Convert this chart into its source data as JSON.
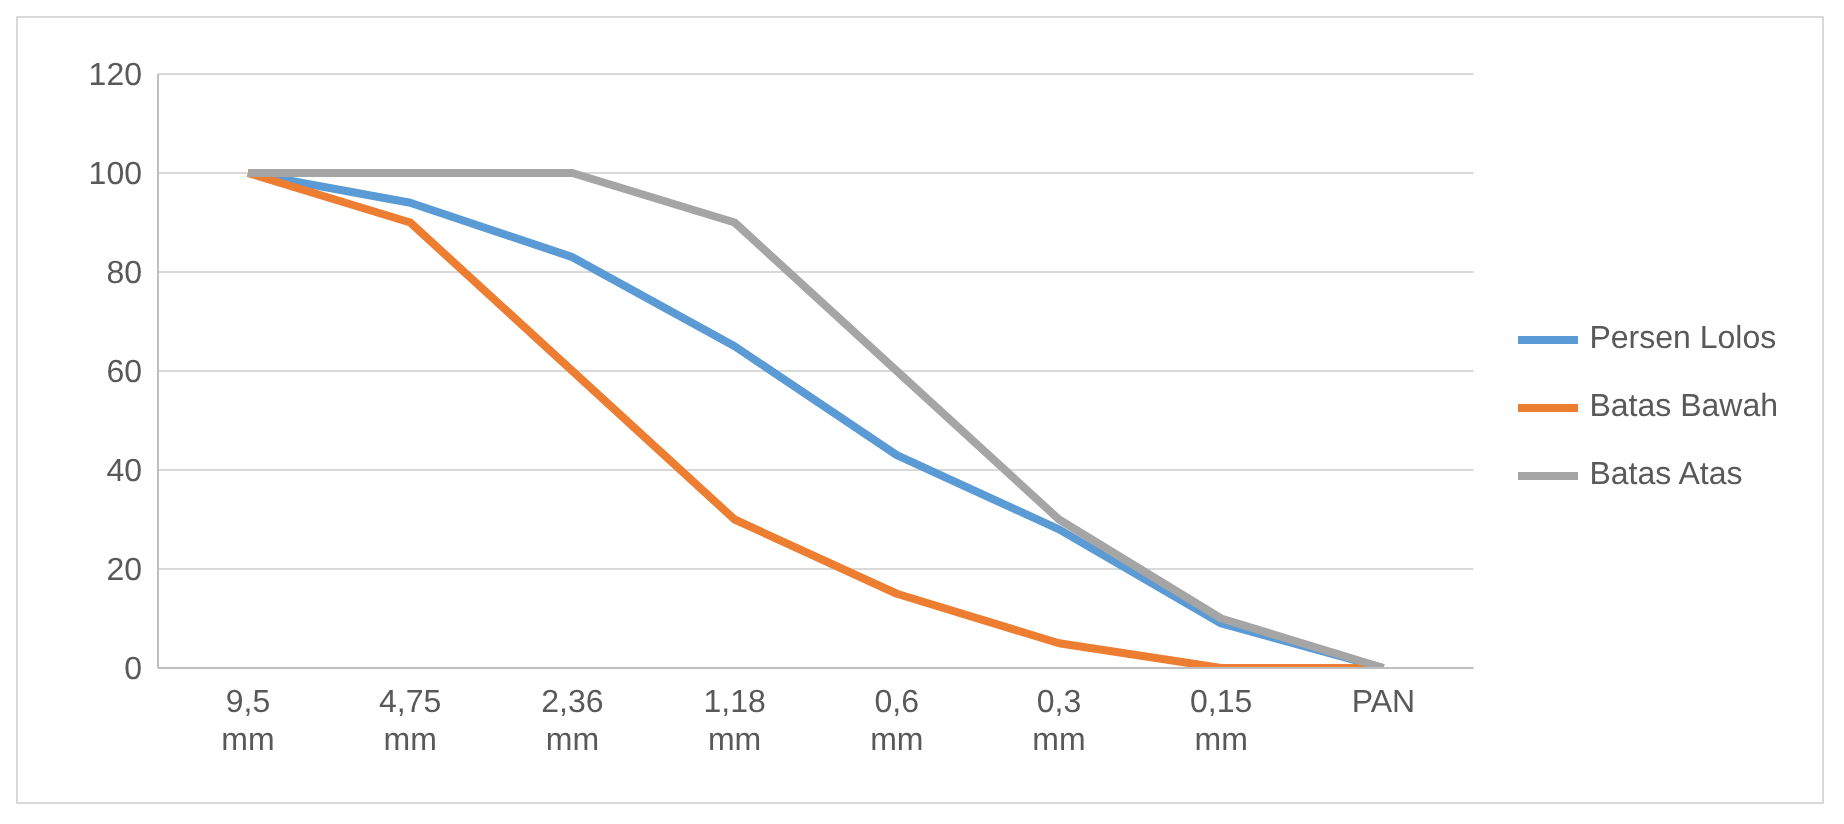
{
  "chart_data": {
    "type": "line",
    "categories": [
      "9,5 mm",
      "4,75 mm",
      "2,36 mm",
      "1,18 mm",
      "0,6 mm",
      "0,3 mm",
      "0,15 mm",
      "PAN"
    ],
    "series": [
      {
        "name": "Persen Lolos",
        "color": "#5b9bd5",
        "values": [
          100,
          94,
          83,
          65,
          43,
          28,
          9,
          0
        ]
      },
      {
        "name": "Batas Bawah",
        "color": "#ed7d31",
        "values": [
          100,
          90,
          60,
          30,
          15,
          5,
          0,
          0
        ]
      },
      {
        "name": "Batas Atas",
        "color": "#a5a5a5",
        "values": [
          100,
          100,
          100,
          90,
          60,
          30,
          10,
          0
        ]
      }
    ],
    "ylim": [
      0,
      120
    ],
    "yticks": [
      0,
      20,
      40,
      60,
      80,
      100,
      120
    ],
    "grid": "y",
    "legend": "right"
  }
}
